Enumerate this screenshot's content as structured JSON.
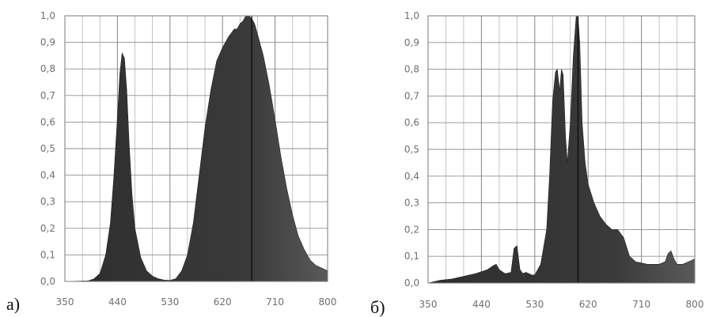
{
  "chart_data": [
    {
      "type": "area",
      "panel_label": "а)",
      "xlim": [
        350,
        800
      ],
      "ylim": [
        0,
        1
      ],
      "x_ticks": [
        "350",
        "440",
        "530",
        "620",
        "710",
        "800"
      ],
      "y_ticks": [
        "0,0",
        "0,1",
        "0,2",
        "0,3",
        "0,4",
        "0,5",
        "0,6",
        "0,7",
        "0,8",
        "0,9",
        "1,0"
      ],
      "grid": true,
      "fill_color": "#3a3a3a",
      "marker_x": 670,
      "series": [
        {
          "x": [
            350,
            390,
            400,
            410,
            420,
            428,
            434,
            440,
            444,
            448,
            452,
            456,
            460,
            465,
            470,
            480,
            490,
            500,
            510,
            520,
            530,
            540,
            550,
            560,
            570,
            580,
            590,
            600,
            610,
            620,
            630,
            640,
            645,
            650,
            655,
            660,
            665,
            670,
            675,
            680,
            690,
            700,
            710,
            720,
            730,
            740,
            750,
            760,
            770,
            780,
            790,
            800
          ],
          "y": [
            0.0,
            0.002,
            0.01,
            0.03,
            0.1,
            0.22,
            0.4,
            0.62,
            0.78,
            0.86,
            0.84,
            0.72,
            0.52,
            0.33,
            0.2,
            0.09,
            0.04,
            0.02,
            0.01,
            0.005,
            0.004,
            0.01,
            0.04,
            0.1,
            0.22,
            0.4,
            0.58,
            0.72,
            0.83,
            0.88,
            0.92,
            0.95,
            0.95,
            0.97,
            0.98,
            1.0,
            1.0,
            0.99,
            0.97,
            0.93,
            0.85,
            0.74,
            0.61,
            0.47,
            0.35,
            0.25,
            0.17,
            0.12,
            0.08,
            0.06,
            0.05,
            0.04
          ]
        }
      ]
    },
    {
      "type": "area",
      "panel_label": "б)",
      "xlim": [
        350,
        800
      ],
      "ylim": [
        0,
        1
      ],
      "x_ticks": [
        "350",
        "440",
        "530",
        "620",
        "710",
        "800"
      ],
      "y_ticks": [
        "0,0",
        "0,1",
        "0,2",
        "0,3",
        "0,4",
        "0,5",
        "0,6",
        "0,7",
        "0,8",
        "0,9",
        "1,0"
      ],
      "grid": true,
      "fill_color": "#3a3a3a",
      "marker_x": 603,
      "series": [
        {
          "x": [
            350,
            370,
            390,
            410,
            430,
            450,
            460,
            465,
            470,
            480,
            490,
            495,
            500,
            505,
            510,
            515,
            520,
            525,
            530,
            540,
            550,
            555,
            560,
            565,
            568,
            572,
            575,
            578,
            582,
            585,
            590,
            595,
            600,
            603,
            606,
            610,
            615,
            620,
            630,
            640,
            650,
            660,
            670,
            680,
            690,
            700,
            720,
            740,
            750,
            755,
            760,
            765,
            770,
            780,
            800
          ],
          "y": [
            0.0,
            0.01,
            0.015,
            0.025,
            0.035,
            0.05,
            0.065,
            0.07,
            0.05,
            0.035,
            0.04,
            0.13,
            0.14,
            0.05,
            0.035,
            0.04,
            0.035,
            0.03,
            0.03,
            0.07,
            0.2,
            0.4,
            0.68,
            0.79,
            0.8,
            0.72,
            0.8,
            0.78,
            0.55,
            0.45,
            0.6,
            0.85,
            1.0,
            0.99,
            0.9,
            0.6,
            0.45,
            0.37,
            0.3,
            0.25,
            0.22,
            0.2,
            0.2,
            0.17,
            0.1,
            0.08,
            0.07,
            0.07,
            0.08,
            0.11,
            0.12,
            0.09,
            0.07,
            0.07,
            0.09
          ]
        }
      ]
    }
  ]
}
